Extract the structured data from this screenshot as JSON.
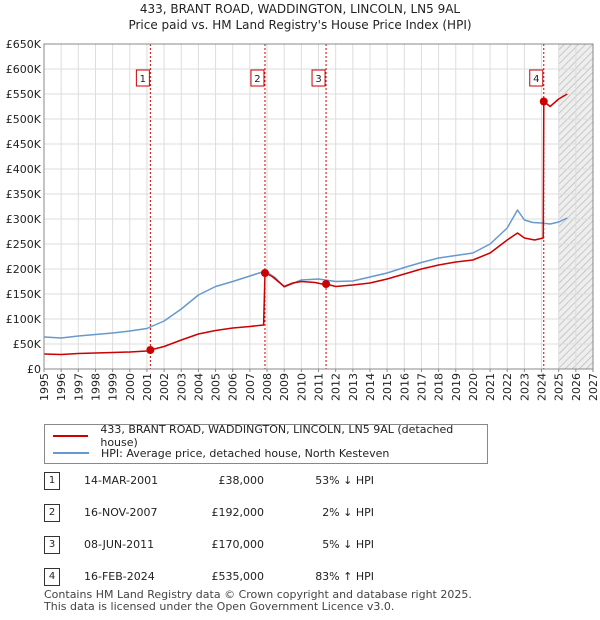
{
  "title_line1": "433, BRANT ROAD, WADDINGTON, LINCOLN, LN5 9AL",
  "title_line2": "Price paid vs. HM Land Registry's House Price Index (HPI)",
  "colors": {
    "property": "#cc0000",
    "hpi": "#6699cc",
    "marker_line": "#cc0000"
  },
  "legend": {
    "property_label": "433, BRANT ROAD, WADDINGTON, LINCOLN, LN5 9AL (detached house)",
    "hpi_label": "HPI: Average price, detached house, North Kesteven"
  },
  "sales": [
    {
      "num": "1",
      "date": "14-MAR-2001",
      "price": "£38,000",
      "hpi": "53% ↓ HPI"
    },
    {
      "num": "2",
      "date": "16-NOV-2007",
      "price": "£192,000",
      "hpi": "2% ↓ HPI"
    },
    {
      "num": "3",
      "date": "08-JUN-2011",
      "price": "£170,000",
      "hpi": "5% ↓ HPI"
    },
    {
      "num": "4",
      "date": "16-FEB-2024",
      "price": "£535,000",
      "hpi": "83% ↑ HPI"
    }
  ],
  "footer_line1": "Contains HM Land Registry data © Crown copyright and database right 2025.",
  "footer_line2": "This data is licensed under the Open Government Licence v3.0.",
  "chart_data": {
    "type": "line",
    "title": "433, BRANT ROAD, WADDINGTON, LINCOLN, LN5 9AL — Price paid vs. HM Land Registry's House Price Index (HPI)",
    "xlabel": "",
    "ylabel": "",
    "xlim": [
      1995,
      2027
    ],
    "ylim": [
      0,
      650000
    ],
    "x_ticks": [
      1995,
      1996,
      1997,
      1998,
      1999,
      2000,
      2001,
      2002,
      2003,
      2004,
      2005,
      2006,
      2007,
      2008,
      2009,
      2010,
      2011,
      2012,
      2013,
      2014,
      2015,
      2016,
      2017,
      2018,
      2019,
      2020,
      2021,
      2022,
      2023,
      2024,
      2025,
      2026,
      2027
    ],
    "y_ticks": [
      {
        "value": 0,
        "label": "£0"
      },
      {
        "value": 50000,
        "label": "£50K"
      },
      {
        "value": 100000,
        "label": "£100K"
      },
      {
        "value": 150000,
        "label": "£150K"
      },
      {
        "value": 200000,
        "label": "£200K"
      },
      {
        "value": 250000,
        "label": "£250K"
      },
      {
        "value": 300000,
        "label": "£300K"
      },
      {
        "value": 350000,
        "label": "£350K"
      },
      {
        "value": 400000,
        "label": "£400K"
      },
      {
        "value": 450000,
        "label": "£450K"
      },
      {
        "value": 500000,
        "label": "£500K"
      },
      {
        "value": 550000,
        "label": "£550K"
      },
      {
        "value": 600000,
        "label": "£600K"
      },
      {
        "value": 650000,
        "label": "£650K"
      }
    ],
    "grid": true,
    "future_shade_from": 2025.0,
    "series": [
      {
        "name": "433, BRANT ROAD, WADDINGTON, LINCOLN, LN5 9AL (detached house)",
        "points": [
          [
            1995.0,
            30000
          ],
          [
            1996.0,
            29000
          ],
          [
            1997.0,
            31000
          ],
          [
            1998.0,
            32000
          ],
          [
            1999.0,
            33000
          ],
          [
            2000.0,
            34000
          ],
          [
            2001.0,
            36000
          ],
          [
            2001.2,
            38000
          ],
          [
            2002.0,
            45000
          ],
          [
            2003.0,
            58000
          ],
          [
            2004.0,
            70000
          ],
          [
            2005.0,
            77000
          ],
          [
            2006.0,
            82000
          ],
          [
            2007.0,
            85000
          ],
          [
            2007.8,
            88000
          ],
          [
            2007.88,
            192000
          ],
          [
            2008.3,
            185000
          ],
          [
            2009.0,
            165000
          ],
          [
            2009.5,
            172000
          ],
          [
            2010.0,
            175000
          ],
          [
            2010.8,
            173000
          ],
          [
            2011.2,
            170000
          ],
          [
            2011.45,
            170000
          ],
          [
            2012.0,
            165000
          ],
          [
            2013.0,
            168000
          ],
          [
            2014.0,
            172000
          ],
          [
            2015.0,
            180000
          ],
          [
            2016.0,
            190000
          ],
          [
            2017.0,
            200000
          ],
          [
            2018.0,
            208000
          ],
          [
            2019.0,
            214000
          ],
          [
            2020.0,
            218000
          ],
          [
            2021.0,
            232000
          ],
          [
            2022.0,
            258000
          ],
          [
            2022.6,
            272000
          ],
          [
            2023.0,
            262000
          ],
          [
            2023.6,
            258000
          ],
          [
            2024.1,
            262000
          ],
          [
            2024.13,
            535000
          ],
          [
            2024.5,
            525000
          ],
          [
            2025.0,
            540000
          ],
          [
            2025.5,
            550000
          ]
        ]
      },
      {
        "name": "HPI: Average price, detached house, North Kesteven",
        "points": [
          [
            1995.0,
            64000
          ],
          [
            1996.0,
            62000
          ],
          [
            1997.0,
            66000
          ],
          [
            1998.0,
            69000
          ],
          [
            1999.0,
            72000
          ],
          [
            2000.0,
            76000
          ],
          [
            2001.0,
            81000
          ],
          [
            2002.0,
            96000
          ],
          [
            2003.0,
            120000
          ],
          [
            2004.0,
            148000
          ],
          [
            2005.0,
            165000
          ],
          [
            2006.0,
            175000
          ],
          [
            2007.0,
            186000
          ],
          [
            2007.9,
            196000
          ],
          [
            2008.5,
            182000
          ],
          [
            2009.0,
            164000
          ],
          [
            2010.0,
            178000
          ],
          [
            2011.0,
            180000
          ],
          [
            2012.0,
            175000
          ],
          [
            2013.0,
            176000
          ],
          [
            2014.0,
            184000
          ],
          [
            2015.0,
            192000
          ],
          [
            2016.0,
            203000
          ],
          [
            2017.0,
            213000
          ],
          [
            2018.0,
            222000
          ],
          [
            2019.0,
            227000
          ],
          [
            2020.0,
            232000
          ],
          [
            2021.0,
            250000
          ],
          [
            2022.0,
            282000
          ],
          [
            2022.6,
            318000
          ],
          [
            2023.0,
            298000
          ],
          [
            2023.5,
            293000
          ],
          [
            2024.0,
            292000
          ],
          [
            2024.5,
            290000
          ],
          [
            2025.0,
            294000
          ],
          [
            2025.5,
            302000
          ]
        ]
      }
    ],
    "sales_markers": [
      {
        "label": "1",
        "x": 2001.2,
        "y": 38000
      },
      {
        "label": "2",
        "x": 2007.88,
        "y": 192000
      },
      {
        "label": "3",
        "x": 2011.44,
        "y": 170000
      },
      {
        "label": "4",
        "x": 2024.13,
        "y": 535000
      }
    ]
  }
}
